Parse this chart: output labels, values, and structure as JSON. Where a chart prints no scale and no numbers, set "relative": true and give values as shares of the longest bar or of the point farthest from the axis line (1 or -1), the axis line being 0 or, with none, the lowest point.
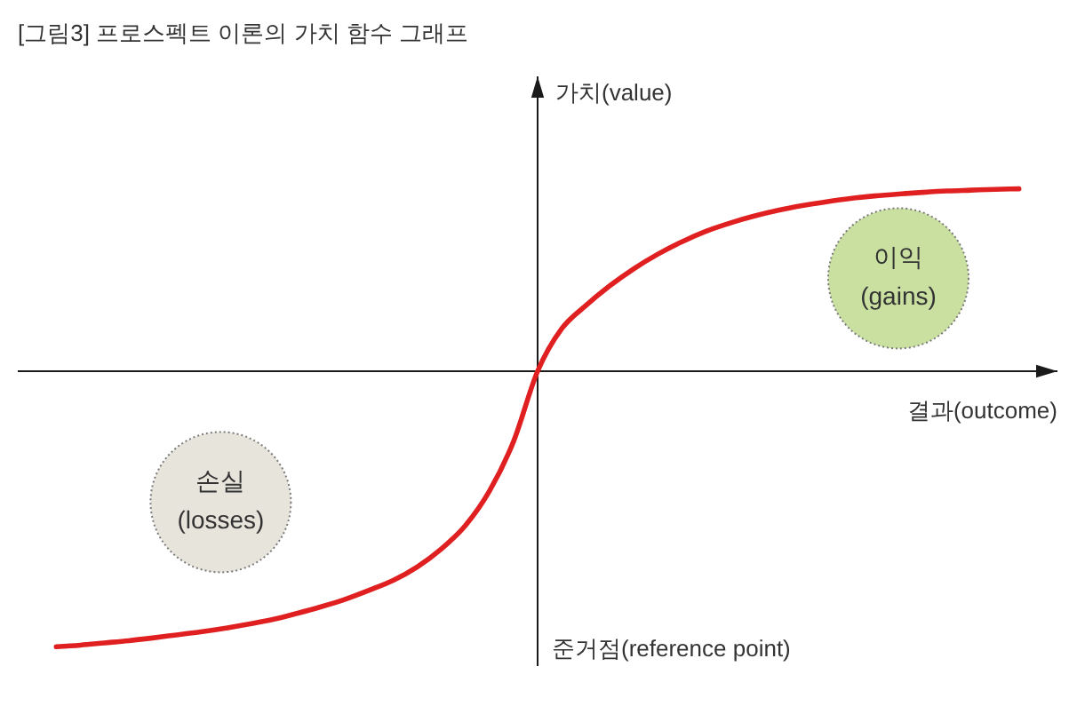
{
  "chart_data": {
    "type": "line",
    "title": "[그림3] 프로스펙트 이론의 가치 함수 그래프",
    "xlabel": "결과(outcome)",
    "ylabel": "가치(value)",
    "annotations": [
      "이익\n(gains)",
      "손실\n(losses)",
      "준거점(reference point)"
    ],
    "relative": true,
    "line_style": "solid",
    "categories": [
      null,
      null,
      null,
      null,
      null,
      null,
      null,
      null,
      null,
      null,
      null,
      null,
      null,
      null,
      null,
      null,
      null,
      null,
      null,
      null,
      null,
      null,
      null,
      null,
      null,
      null,
      null,
      null,
      null,
      null,
      null,
      null,
      null,
      null,
      null,
      null,
      null,
      null,
      null,
      null,
      null
    ],
    "series": [
      {
        "color": "#e02020",
        "values": [
          -1,
          -0.994,
          -0.986,
          -0.978,
          -0.968,
          -0.957,
          -0.946,
          -0.933,
          -0.918,
          -0.901,
          -0.879,
          -0.855,
          -0.828,
          -0.795,
          -0.759,
          -0.71,
          -0.645,
          -0.56,
          -0.435,
          -0.255,
          0,
          0.154,
          0.238,
          0.31,
          0.372,
          0.425,
          0.47,
          0.508,
          0.538,
          0.563,
          0.584,
          0.601,
          0.615,
          0.627,
          0.636,
          0.643,
          0.649,
          0.654,
          0.657,
          0.66,
          0.662
        ]
      }
    ]
  }
}
